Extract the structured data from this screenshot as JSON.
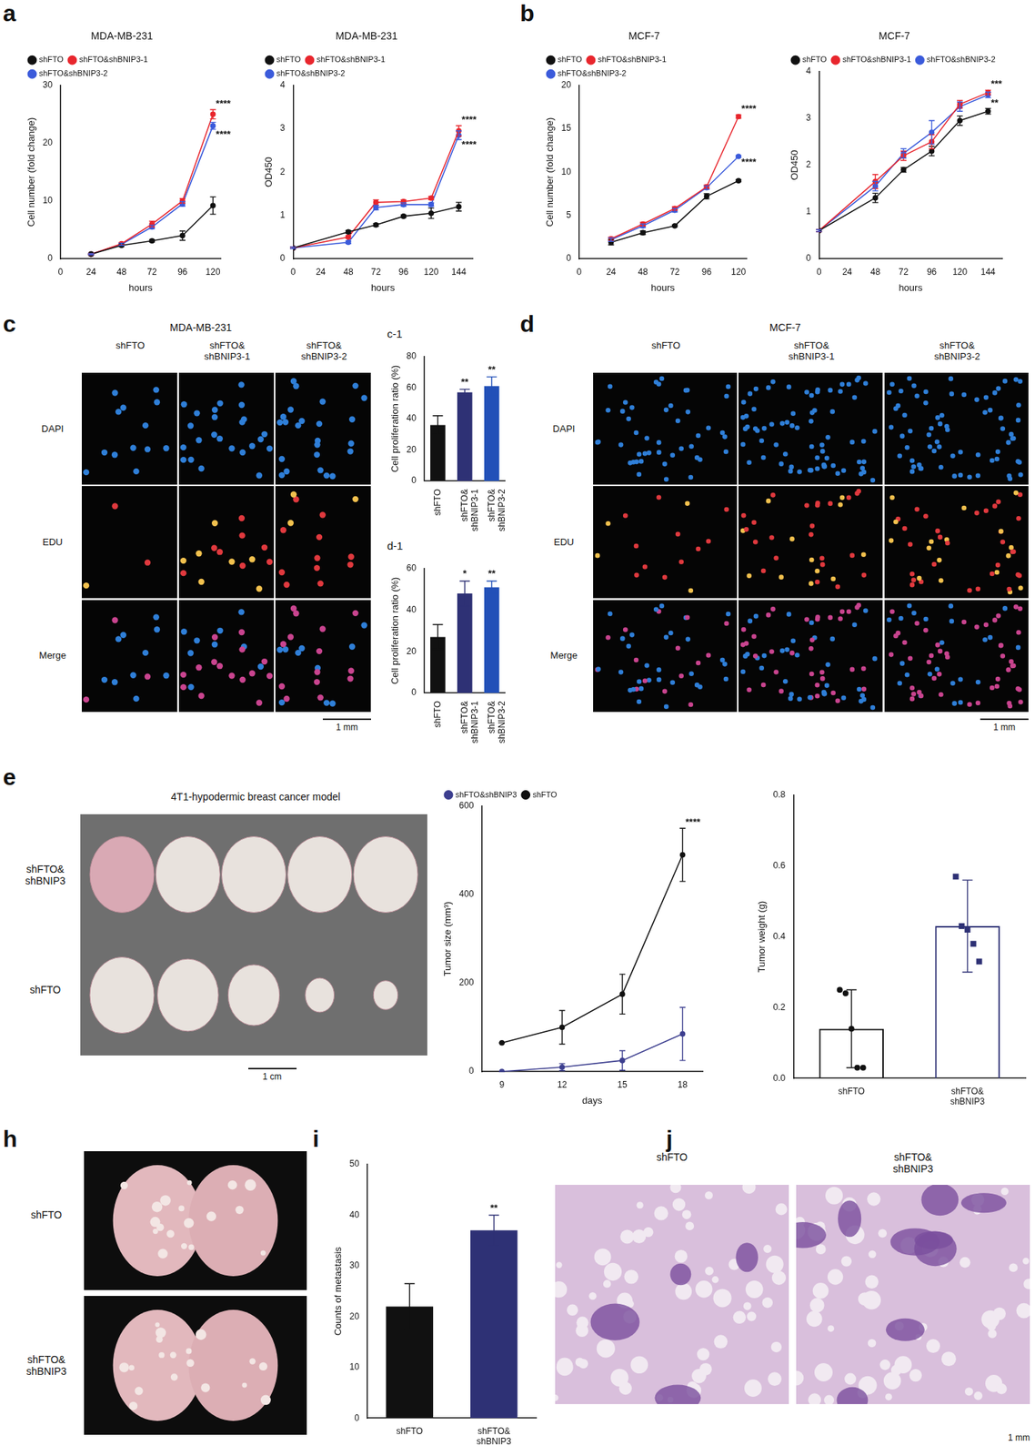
{
  "panel_labels": [
    "a",
    "b",
    "c",
    "c-1",
    "d-1",
    "d",
    "e",
    "h",
    "i",
    "j"
  ],
  "chart_data": [
    {
      "type": "line",
      "title": "MDA-MB-231",
      "x_label": "hours",
      "y_label": "Cell number (fold change)",
      "x": [
        24,
        48,
        72,
        96,
        120
      ],
      "xlim": [
        0,
        126
      ],
      "xticks": [
        0,
        24,
        48,
        72,
        96,
        120
      ],
      "ylim": [
        0,
        30
      ],
      "yticks": [
        0,
        10,
        20,
        30
      ],
      "grid": false,
      "legend": "top",
      "marker": "circle",
      "series": [
        {
          "name": "shFTO",
          "color": "#111111",
          "values": [
            0.8,
            2.3,
            3.1,
            4.0,
            9.2
          ],
          "errors": [
            0.1,
            0.2,
            0.2,
            0.8,
            1.5
          ]
        },
        {
          "name": "shFTO&shBNIP3-1",
          "color": "#e8262d",
          "values": [
            0.8,
            2.6,
            6.0,
            10.0,
            25.0
          ],
          "errors": [
            0.1,
            0.2,
            0.5,
            0.4,
            0.8
          ],
          "significance": [
            null,
            null,
            null,
            null,
            "****"
          ]
        },
        {
          "name": "shFTO&shBNIP3-2",
          "color": "#3b5bdb",
          "values": [
            0.8,
            2.5,
            5.5,
            9.5,
            23.0
          ],
          "errors": [
            0.1,
            0.2,
            0.3,
            0.4,
            0.6
          ],
          "significance": [
            null,
            null,
            null,
            null,
            "****"
          ]
        }
      ]
    },
    {
      "type": "line",
      "title": "MDA-MB-231",
      "x_label": "hours",
      "y_label": "OD450",
      "x": [
        0,
        48,
        72,
        96,
        120,
        144
      ],
      "xlim": [
        0,
        156
      ],
      "xticks": [
        0,
        24,
        48,
        72,
        96,
        120,
        144
      ],
      "ylim": [
        0,
        4
      ],
      "yticks": [
        0,
        1,
        2,
        3,
        4
      ],
      "grid": false,
      "legend": "top",
      "marker": "circle",
      "series": [
        {
          "name": "shFTO",
          "color": "#111111",
          "values": [
            0.25,
            0.62,
            0.78,
            0.98,
            1.05,
            1.2
          ],
          "errors": [
            0.02,
            0.03,
            0.03,
            0.03,
            0.12,
            0.1
          ]
        },
        {
          "name": "shFTO&shBNIP3-1",
          "color": "#e8262d",
          "values": [
            0.25,
            0.5,
            1.3,
            1.32,
            1.4,
            2.95
          ],
          "errors": [
            0.02,
            0.03,
            0.06,
            0.04,
            0.04,
            0.12
          ],
          "significance": [
            null,
            null,
            null,
            null,
            null,
            "****"
          ]
        },
        {
          "name": "shFTO&shBNIP3-2",
          "color": "#3b5bdb",
          "values": [
            0.25,
            0.38,
            1.18,
            1.25,
            1.25,
            2.85
          ],
          "errors": [
            0.02,
            0.03,
            0.05,
            0.04,
            0.04,
            0.1
          ],
          "significance": [
            null,
            null,
            null,
            null,
            null,
            "****"
          ]
        }
      ]
    },
    {
      "type": "line",
      "title": "MCF-7",
      "x_label": "hours",
      "y_label": "Cell number (fold change)",
      "x": [
        24,
        48,
        72,
        96,
        120
      ],
      "xlim": [
        0,
        126
      ],
      "xticks": [
        0,
        24,
        48,
        72,
        96,
        120
      ],
      "ylim": [
        0,
        20
      ],
      "yticks": [
        0,
        5,
        10,
        15,
        20
      ],
      "grid": false,
      "legend": "top",
      "marker": "circle",
      "series": [
        {
          "name": "shFTO",
          "color": "#111111",
          "values": [
            1.9,
            3.0,
            3.8,
            7.2,
            9.0
          ],
          "errors": [
            0.3,
            0.2,
            0.1,
            0.3,
            0.1
          ]
        },
        {
          "name": "shFTO&shBNIP3-1",
          "color": "#e8262d",
          "values": [
            2.3,
            4.0,
            5.8,
            8.3,
            16.4
          ],
          "errors": [
            0.2,
            0.2,
            0.2,
            0.2,
            0.2
          ],
          "significance": [
            null,
            null,
            null,
            null,
            "****"
          ]
        },
        {
          "name": "shFTO&shBNIP3-2",
          "color": "#3b5bdb",
          "values": [
            2.2,
            3.8,
            5.6,
            8.2,
            11.8
          ],
          "errors": [
            0.2,
            0.2,
            0.2,
            0.2,
            0.1
          ],
          "significance": [
            null,
            null,
            null,
            null,
            "****"
          ]
        }
      ]
    },
    {
      "type": "line",
      "title": "MCF-7",
      "x_label": "hours",
      "y_label": "OD450",
      "x": [
        0,
        48,
        72,
        96,
        120,
        144
      ],
      "xlim": [
        0,
        156
      ],
      "xticks": [
        0,
        24,
        48,
        72,
        96,
        120,
        144
      ],
      "ylim": [
        0,
        4
      ],
      "yticks": [
        0,
        1,
        2,
        3,
        4
      ],
      "grid": false,
      "legend": "top",
      "marker": "circle",
      "series": [
        {
          "name": "shFTO",
          "color": "#111111",
          "values": [
            0.6,
            1.3,
            1.9,
            2.3,
            2.95,
            3.15
          ],
          "errors": [
            0.02,
            0.1,
            0.05,
            0.1,
            0.1,
            0.06
          ]
        },
        {
          "name": "shFTO&shBNIP3-1",
          "color": "#e8262d",
          "values": [
            0.6,
            1.65,
            2.2,
            2.5,
            3.3,
            3.55
          ],
          "errors": [
            0.02,
            0.15,
            0.1,
            0.15,
            0.08,
            0.05
          ],
          "significance": [
            null,
            null,
            null,
            null,
            null,
            "***"
          ]
        },
        {
          "name": "shFTO&shBNIP3-2",
          "color": "#3b5bdb",
          "values": [
            0.6,
            1.55,
            2.25,
            2.7,
            3.25,
            3.5
          ],
          "errors": [
            0.02,
            0.1,
            0.1,
            0.25,
            0.1,
            0.06
          ],
          "significance": [
            null,
            null,
            null,
            null,
            null,
            "**"
          ]
        }
      ]
    },
    {
      "type": "bar",
      "y_label": "Cell proliferation ratio (%)",
      "categories": [
        "shFTO",
        "shFTO&\nshBNIP3-1",
        "shFTO&\nshBNIP3-2"
      ],
      "values": [
        36,
        57,
        61
      ],
      "errors": [
        6,
        2,
        6
      ],
      "significance": [
        null,
        "**",
        "**"
      ],
      "colors": [
        "#111111",
        "#2e3175",
        "#2250b8"
      ],
      "ylim": [
        0,
        80
      ],
      "yticks": [
        0,
        20,
        40,
        60,
        80
      ],
      "grid": false
    },
    {
      "type": "bar",
      "y_label": "Cell proliferation ratio (%)",
      "categories": [
        "shFTO",
        "shFTO&\nshBNIP3-1",
        "shFTO&\nshBNIP3-2"
      ],
      "values": [
        27,
        48,
        51
      ],
      "errors": [
        6,
        6,
        3
      ],
      "significance": [
        null,
        "*",
        "**"
      ],
      "colors": [
        "#111111",
        "#2e3175",
        "#2250b8"
      ],
      "ylim": [
        0,
        60
      ],
      "yticks": [
        0,
        20,
        40,
        60
      ],
      "grid": false
    },
    {
      "type": "line",
      "x_label": "days",
      "y_label": "Tumor size (mm³)",
      "x": [
        9,
        12,
        15,
        18
      ],
      "xlim": [
        8,
        19
      ],
      "xticks": [
        9,
        12,
        15,
        18
      ],
      "ylim": [
        0,
        600
      ],
      "yticks": [
        0,
        200,
        400,
        600
      ],
      "grid": false,
      "legend": "top",
      "marker": "circle",
      "series": [
        {
          "name": "shFTO&shBNIP3",
          "color": "#3d3f8f",
          "values": [
            0,
            10,
            25,
            85
          ],
          "errors": [
            0,
            8,
            22,
            60
          ]
        },
        {
          "name": "shFTO",
          "color": "#111111",
          "values": [
            65,
            100,
            175,
            490
          ],
          "errors": [
            0,
            38,
            45,
            60
          ],
          "significance": [
            null,
            null,
            null,
            "****"
          ]
        }
      ]
    },
    {
      "type": "bar",
      "y_label": "Tumor weight (g)",
      "categories": [
        "shFTO",
        "shFTO&\nshBNIP3"
      ],
      "values": [
        0.14,
        0.43
      ],
      "errors": [
        0.11,
        0.13
      ],
      "colors": [
        "#111111",
        "#2e3175"
      ],
      "points": [
        {
          "marker": "circle",
          "values": [
            0.25,
            0.24,
            0.14,
            0.03,
            0.03
          ]
        },
        {
          "marker": "square",
          "values": [
            0.57,
            0.43,
            0.42,
            0.38,
            0.33
          ]
        }
      ],
      "ylim": [
        0,
        0.8
      ],
      "yticks": [
        {
          "value": 0,
          "label": "0.0"
        },
        0.2,
        0.4,
        0.6,
        0.8
      ],
      "grid": false
    },
    {
      "type": "bar",
      "y_label": "Counts of metastasis",
      "categories": [
        "shFTO",
        "shFTO&\nshBNIP3"
      ],
      "values": [
        22,
        37
      ],
      "errors": [
        4.5,
        3
      ],
      "significance": [
        null,
        "**"
      ],
      "colors": [
        "#111111",
        "#2e3175"
      ],
      "ylim": [
        0,
        50
      ],
      "yticks": [
        0,
        10,
        20,
        30,
        40,
        50
      ],
      "grid": false
    }
  ],
  "images": [
    {
      "title": "MDA-MB-231",
      "columns": [
        "shFTO",
        "shFTO&\nshBNIP3-1",
        "shFTO&\nshBNIP3-2"
      ],
      "rows": [
        "DAPI",
        "EDU",
        "Merge"
      ],
      "scale_bar": "1 mm"
    },
    {
      "title": "MCF-7",
      "columns": [
        "shFTO",
        "shFTO&\nshBNIP3-1",
        "shFTO&\nshBNIP3-2"
      ],
      "rows": [
        "DAPI",
        "EDU",
        "Merge"
      ],
      "scale_bar": "1 mm"
    },
    {
      "title": "4T1-hypodermic breast cancer model",
      "rows": [
        "shFTO&\nshBNIP3",
        "shFTO"
      ],
      "scale_bar": "1 cm"
    },
    {
      "rows": [
        "shFTO",
        "shFTO&\nshBNIP3"
      ]
    },
    {
      "columns": [
        "shFTO",
        "shFTO&\nshBNIP3"
      ],
      "scale_bar": "1 mm"
    }
  ]
}
